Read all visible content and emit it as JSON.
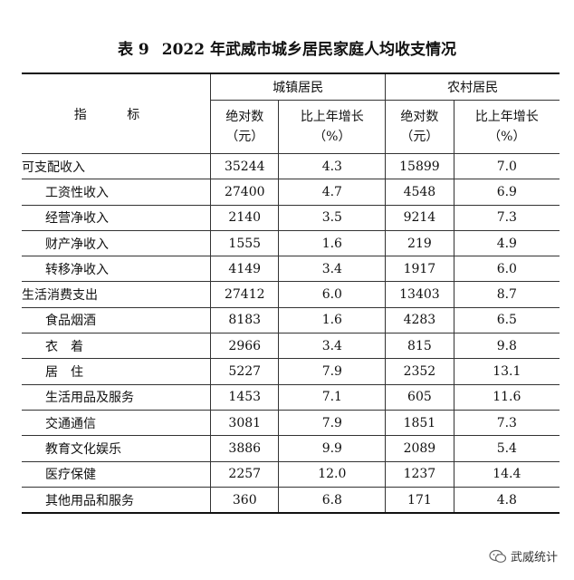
{
  "title": {
    "number": "表 9",
    "text": "2022 年武威市城乡居民家庭人均收支情况"
  },
  "header": {
    "indicator": "指 标",
    "urban": "城镇居民",
    "rural": "农村居民",
    "urban_abs": "绝对数",
    "urban_abs_unit": "（元）",
    "urban_growth": "比上年增长",
    "urban_growth_unit": "（%）",
    "rural_abs": "绝对数",
    "rural_abs_unit": "（元）",
    "rural_growth": "比上年增长",
    "rural_growth_unit": "（%）"
  },
  "rows": [
    {
      "label": "可支配收入",
      "indent": false,
      "urban_abs": "35244",
      "urban_growth": "4.3",
      "rural_abs": "15899",
      "rural_growth": "7.0"
    },
    {
      "label": "工资性收入",
      "indent": true,
      "urban_abs": "27400",
      "urban_growth": "4.7",
      "rural_abs": "4548",
      "rural_growth": "6.9"
    },
    {
      "label": "经营净收入",
      "indent": true,
      "urban_abs": "2140",
      "urban_growth": "3.5",
      "rural_abs": "9214",
      "rural_growth": "7.3"
    },
    {
      "label": "财产净收入",
      "indent": true,
      "urban_abs": "1555",
      "urban_growth": "1.6",
      "rural_abs": "219",
      "rural_growth": "4.9"
    },
    {
      "label": "转移净收入",
      "indent": true,
      "urban_abs": "4149",
      "urban_growth": "3.4",
      "rural_abs": "1917",
      "rural_growth": "6.0"
    },
    {
      "label": "生活消费支出",
      "indent": false,
      "urban_abs": "27412",
      "urban_growth": "6.0",
      "rural_abs": "13403",
      "rural_growth": "8.7"
    },
    {
      "label": "食品烟酒",
      "indent": true,
      "urban_abs": "8183",
      "urban_growth": "1.6",
      "rural_abs": "4283",
      "rural_growth": "6.5"
    },
    {
      "label": "衣　着",
      "indent": true,
      "urban_abs": "2966",
      "urban_growth": "3.4",
      "rural_abs": "815",
      "rural_growth": "9.8"
    },
    {
      "label": "居　住",
      "indent": true,
      "urban_abs": "5227",
      "urban_growth": "7.9",
      "rural_abs": "2352",
      "rural_growth": "13.1"
    },
    {
      "label": "生活用品及服务",
      "indent": true,
      "urban_abs": "1453",
      "urban_growth": "7.1",
      "rural_abs": "605",
      "rural_growth": "11.6"
    },
    {
      "label": "交通通信",
      "indent": true,
      "urban_abs": "3081",
      "urban_growth": "7.9",
      "rural_abs": "1851",
      "rural_growth": "7.3"
    },
    {
      "label": "教育文化娱乐",
      "indent": true,
      "urban_abs": "3886",
      "urban_growth": "9.9",
      "rural_abs": "2089",
      "rural_growth": "5.4"
    },
    {
      "label": "医疗保健",
      "indent": true,
      "urban_abs": "2257",
      "urban_growth": "12.0",
      "rural_abs": "1237",
      "rural_growth": "14.4"
    },
    {
      "label": "其他用品和服务",
      "indent": true,
      "urban_abs": "360",
      "urban_growth": "6.8",
      "rural_abs": "171",
      "rural_growth": "4.8"
    }
  ],
  "watermark": {
    "text": "武威统计",
    "icon": "wechat-icon"
  }
}
